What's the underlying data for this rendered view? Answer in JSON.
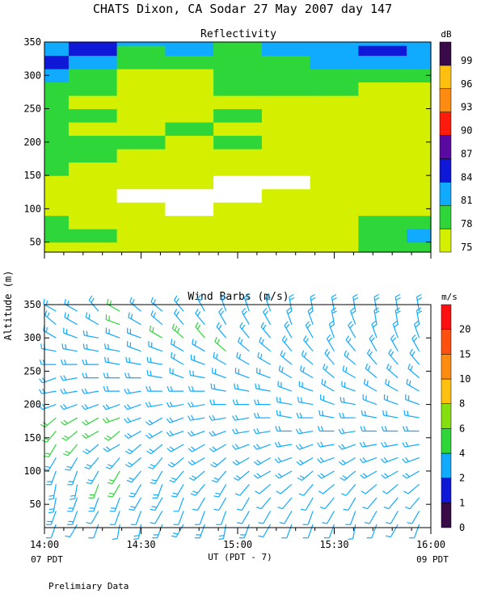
{
  "title": "CHATS Dixon, CA  Sodar  27 May 2007  day 147",
  "footer": "Prelimiary Data",
  "shared_ylabel": "Altitude (m)",
  "chart_data": [
    {
      "type": "heatmap",
      "title": "Reflectivity",
      "ylabel": "Altitude (m)",
      "ylim": [
        35,
        350
      ],
      "yticks": [
        50,
        100,
        150,
        200,
        250,
        300,
        350
      ],
      "colorbar": {
        "unit": "dB",
        "levels": [
          75,
          78,
          81,
          84,
          87,
          90,
          93,
          96,
          99
        ],
        "colors": [
          "#d4f000",
          "#2ed63a",
          "#10aaff",
          "#1018d8",
          "#5a0aa0",
          "#ff1c0c",
          "#ff8c10",
          "#ffc010",
          "#380a48"
        ]
      },
      "x_times_hours": [
        14.0,
        14.25,
        14.5,
        14.75,
        15.0,
        15.25,
        15.5,
        15.75,
        16.0
      ],
      "y_altitudes_m": [
        40,
        60,
        80,
        100,
        120,
        140,
        160,
        180,
        200,
        220,
        240,
        260,
        280,
        300,
        320,
        340,
        350
      ],
      "z_dB": [
        [
          76,
          77,
          76,
          76,
          77,
          77,
          77,
          78,
          78
        ],
        [
          80,
          78,
          77,
          76,
          77,
          77,
          77,
          78,
          81
        ],
        [
          78,
          77,
          76,
          75,
          76,
          77,
          77,
          78,
          79
        ],
        [
          77,
          76,
          75,
          74,
          75,
          76,
          76,
          77,
          77
        ],
        [
          77,
          75,
          74,
          74,
          74,
          75,
          75,
          76,
          76
        ],
        [
          77,
          76,
          75,
          75,
          74,
          74,
          75,
          75,
          76
        ],
        [
          78,
          77,
          76,
          76,
          75,
          75,
          75,
          76,
          76
        ],
        [
          78,
          78,
          77,
          77,
          76,
          76,
          76,
          76,
          76
        ],
        [
          80,
          78,
          78,
          77,
          78,
          77,
          76,
          76,
          77
        ],
        [
          78,
          77,
          77,
          78,
          77,
          76,
          75,
          76,
          76
        ],
        [
          78,
          78,
          76,
          76,
          78,
          76,
          76,
          76,
          75
        ],
        [
          78,
          77,
          76,
          77,
          77,
          77,
          77,
          76,
          75
        ],
        [
          78,
          78,
          75,
          76,
          78,
          78,
          78,
          77,
          76
        ],
        [
          81,
          78,
          77,
          77,
          78,
          78,
          79,
          78,
          78
        ],
        [
          84,
          82,
          80,
          80,
          78,
          78,
          81,
          83,
          82
        ],
        [
          82,
          84,
          80,
          81,
          80,
          81,
          82,
          84,
          81
        ],
        [
          82,
          84,
          81,
          81,
          80,
          81,
          82,
          82,
          81
        ]
      ]
    },
    {
      "type": "scatter",
      "title": "Wind Barbs (m/s)",
      "xlabel": "UT  (PDT - 7)",
      "ylabel": "Altitude (m)",
      "xlim": [
        14.0,
        16.0
      ],
      "ylim": [
        15,
        350
      ],
      "xticks": [
        "14:00",
        "14:30",
        "15:00",
        "15:30",
        "16:00"
      ],
      "yticks": [
        50,
        100,
        150,
        200,
        250,
        300,
        350
      ],
      "x_edge_labels": [
        "07 PDT",
        "09 PDT"
      ],
      "colorbar": {
        "unit": "m/s",
        "levels": [
          0,
          1,
          2,
          4,
          6,
          8,
          10,
          15,
          20
        ],
        "colors": [
          "#380a48",
          "#1018d8",
          "#10aaff",
          "#2ed63a",
          "#86e010",
          "#ffc010",
          "#ff8c10",
          "#ff5010",
          "#ff1010"
        ]
      },
      "times_hours": [
        14.06,
        14.17,
        14.28,
        14.39,
        14.5,
        14.61,
        14.72,
        14.83,
        14.94,
        15.06,
        15.17,
        15.28,
        15.39,
        15.5,
        15.61,
        15.72,
        15.83,
        15.94
      ],
      "altitudes_m": [
        20,
        40,
        60,
        80,
        100,
        120,
        140,
        160,
        180,
        200,
        220,
        240,
        260,
        280,
        300,
        320,
        340
      ],
      "speed_ms": [
        [
          2.5,
          3,
          3.5,
          3,
          3,
          3.5,
          4,
          4,
          4,
          3.5,
          3.5,
          3,
          3,
          3,
          3,
          3,
          3
        ],
        [
          2.5,
          3,
          3.5,
          3,
          3,
          3.5,
          4,
          4,
          4,
          3.5,
          3.5,
          3,
          3,
          3,
          3,
          3,
          3
        ],
        [
          2.5,
          2.5,
          3.5,
          4,
          3,
          3,
          3.5,
          4.5,
          4,
          3.5,
          3.5,
          3,
          3,
          3,
          3,
          3.5,
          3
        ],
        [
          2.5,
          2.5,
          3,
          4,
          4.5,
          3.5,
          3.5,
          4,
          4,
          3.5,
          3,
          3,
          3,
          3,
          3,
          4,
          4
        ],
        [
          3,
          2.5,
          3,
          3.5,
          3.5,
          3.5,
          3,
          3.5,
          3.5,
          3,
          3,
          3,
          3,
          3,
          3,
          3.5,
          3.5
        ],
        [
          3,
          2.5,
          3,
          3.5,
          3.5,
          3.5,
          3,
          3,
          3,
          3,
          3,
          3,
          3,
          3,
          4,
          3.5,
          3
        ],
        [
          3,
          2.5,
          2.5,
          3,
          3.5,
          3,
          3,
          3,
          3,
          3,
          3,
          3,
          3,
          3.5,
          5,
          3.5,
          3
        ],
        [
          3,
          2.5,
          2.5,
          3,
          3.5,
          3.5,
          3,
          3,
          3.5,
          3,
          3,
          3,
          3,
          3,
          4,
          3.5,
          3
        ],
        [
          3,
          2.5,
          2.5,
          3,
          3.5,
          3,
          3,
          3.5,
          3.5,
          3,
          3,
          3,
          3.5,
          4,
          3,
          3,
          3
        ],
        [
          3,
          2.5,
          2.5,
          2.5,
          3,
          3,
          3,
          3,
          3.5,
          3,
          3,
          3,
          3,
          3,
          3.5,
          3,
          3
        ],
        [
          2.5,
          2.5,
          2.5,
          2.5,
          3,
          3,
          3,
          3,
          3,
          3,
          3,
          3,
          3,
          3,
          3.5,
          3,
          3
        ],
        [
          2.5,
          2.5,
          2.5,
          2.5,
          3,
          3,
          3,
          3,
          3,
          3,
          3,
          3,
          3,
          3,
          3,
          3,
          3
        ],
        [
          2.5,
          2.5,
          2.5,
          2.5,
          3,
          3,
          3,
          3,
          3,
          3,
          3,
          3,
          3,
          3,
          3,
          3,
          3
        ],
        [
          2.5,
          2.5,
          2.5,
          2.5,
          3,
          3,
          3,
          3,
          3,
          3,
          3,
          3,
          3,
          3,
          3,
          3,
          3
        ],
        [
          2.5,
          2.5,
          2.5,
          2.5,
          3,
          3,
          3,
          3,
          3,
          3,
          3,
          3,
          3,
          3,
          3,
          3,
          3
        ],
        [
          2.5,
          2.5,
          2.5,
          2.5,
          3,
          3,
          3,
          3,
          3,
          3,
          3,
          3,
          3,
          3,
          3,
          3,
          3
        ],
        [
          2.5,
          2.5,
          2.5,
          2.5,
          3,
          3,
          3,
          3,
          3,
          3,
          3,
          3,
          3,
          3,
          3,
          3,
          3
        ],
        [
          2.5,
          2.5,
          2.5,
          2.5,
          3,
          3,
          3,
          3,
          3,
          3,
          3,
          3,
          3,
          3,
          3,
          3,
          3
        ]
      ],
      "direction_deg": [
        [
          200,
          200,
          190,
          190,
          200,
          210,
          210,
          220,
          230,
          250,
          260,
          250,
          270,
          280,
          300,
          310,
          300
        ],
        [
          210,
          200,
          200,
          190,
          200,
          210,
          220,
          230,
          240,
          250,
          260,
          260,
          270,
          280,
          290,
          300,
          300
        ],
        [
          200,
          210,
          200,
          200,
          210,
          220,
          230,
          240,
          240,
          250,
          260,
          270,
          270,
          280,
          280,
          300,
          320
        ],
        [
          190,
          200,
          200,
          210,
          210,
          220,
          240,
          230,
          250,
          250,
          270,
          270,
          280,
          280,
          290,
          290,
          300
        ],
        [
          190,
          200,
          210,
          210,
          220,
          230,
          230,
          240,
          250,
          250,
          260,
          270,
          280,
          290,
          290,
          300,
          310
        ],
        [
          200,
          210,
          210,
          200,
          210,
          220,
          230,
          240,
          240,
          260,
          270,
          280,
          280,
          290,
          300,
          310,
          310
        ],
        [
          210,
          200,
          200,
          210,
          220,
          230,
          240,
          250,
          250,
          260,
          270,
          290,
          300,
          300,
          310,
          320,
          320
        ],
        [
          200,
          200,
          210,
          220,
          230,
          240,
          240,
          250,
          260,
          260,
          270,
          280,
          290,
          300,
          320,
          320,
          330
        ],
        [
          190,
          200,
          210,
          210,
          220,
          230,
          240,
          250,
          260,
          270,
          280,
          290,
          300,
          310,
          320,
          330,
          340
        ],
        [
          200,
          210,
          210,
          220,
          230,
          240,
          250,
          260,
          260,
          270,
          280,
          290,
          300,
          310,
          320,
          330,
          340
        ],
        [
          210,
          210,
          220,
          230,
          240,
          240,
          250,
          260,
          270,
          270,
          280,
          290,
          300,
          310,
          320,
          330,
          340
        ],
        [
          200,
          210,
          220,
          230,
          240,
          250,
          260,
          270,
          280,
          280,
          290,
          300,
          310,
          320,
          330,
          340,
          350
        ],
        [
          200,
          200,
          210,
          220,
          230,
          240,
          250,
          260,
          270,
          280,
          290,
          300,
          310,
          320,
          330,
          340,
          350
        ],
        [
          200,
          210,
          220,
          230,
          240,
          250,
          260,
          270,
          280,
          290,
          300,
          310,
          320,
          330,
          340,
          350,
          350
        ],
        [
          190,
          200,
          210,
          220,
          230,
          240,
          250,
          260,
          270,
          280,
          290,
          300,
          310,
          320,
          330,
          340,
          350
        ],
        [
          200,
          210,
          220,
          230,
          240,
          250,
          260,
          270,
          280,
          290,
          300,
          310,
          320,
          330,
          340,
          350,
          350
        ],
        [
          210,
          210,
          220,
          230,
          240,
          250,
          260,
          270,
          280,
          290,
          300,
          310,
          320,
          330,
          340,
          350,
          350
        ],
        [
          200,
          210,
          220,
          230,
          240,
          250,
          260,
          270,
          280,
          290,
          300,
          310,
          320,
          330,
          340,
          350,
          350
        ]
      ]
    }
  ]
}
